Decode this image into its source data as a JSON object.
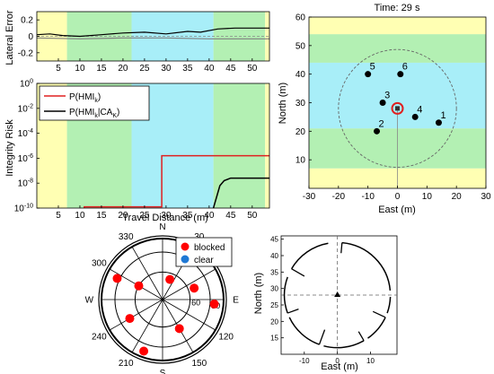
{
  "panels": {
    "lateral_error": {
      "ylabel": "Lateral Error"
    },
    "integrity_risk": {
      "ylabel": "Integrity Risk",
      "xlabel": "Travel Distance (m)"
    },
    "map": {
      "title": "Time: 29 s",
      "xlabel": "East (m)",
      "ylabel": "North (m)"
    },
    "polar": {
      "legend": [
        "blocked",
        "clear"
      ]
    },
    "scan": {
      "xlabel": "East (m)",
      "ylabel": "North (m)"
    }
  },
  "chart_data": [
    {
      "id": "lateral_error",
      "type": "line",
      "ylabel": "Lateral Error",
      "xlim": [
        0,
        54
      ],
      "ylim": [
        -0.3,
        0.3
      ],
      "yticks": [
        0.2,
        0,
        -0.2
      ],
      "xticks": [
        5,
        10,
        15,
        20,
        25,
        30,
        35,
        40,
        45,
        50
      ],
      "bands": [
        {
          "from": 0,
          "to": 7,
          "color": "#ffffb3"
        },
        {
          "from": 7,
          "to": 22,
          "color": "#b3f0b3"
        },
        {
          "from": 22,
          "to": 41,
          "color": "#a8eef8"
        },
        {
          "from": 41,
          "to": 53,
          "color": "#b3f0b3"
        },
        {
          "from": 53,
          "to": 54,
          "color": "#ffffb3"
        }
      ],
      "series": [
        {
          "values": [
            [
              0,
              0.02
            ],
            [
              3,
              0.03
            ],
            [
              6,
              0.01
            ],
            [
              10,
              0.0
            ],
            [
              15,
              0.02
            ],
            [
              20,
              0.04
            ],
            [
              25,
              0.05
            ],
            [
              30,
              0.03
            ],
            [
              35,
              0.06
            ],
            [
              38,
              0.05
            ],
            [
              42,
              0.09
            ],
            [
              46,
              0.1
            ],
            [
              50,
              0.1
            ],
            [
              54,
              0.1
            ]
          ],
          "color": "#000000"
        },
        {
          "values": [
            [
              0,
              -0.02
            ],
            [
              10,
              -0.03
            ],
            [
              20,
              -0.02
            ],
            [
              30,
              -0.02
            ],
            [
              40,
              -0.03
            ],
            [
              54,
              -0.03
            ]
          ],
          "color": "#808080"
        }
      ]
    },
    {
      "id": "integrity_risk",
      "type": "line",
      "ylabel": "Integrity Risk",
      "xlabel": "Travel Distance (m)",
      "scale": "log",
      "xlim": [
        0,
        54
      ],
      "ylim_exp": [
        -10,
        0
      ],
      "yticks": [
        "10^0",
        "10^-2",
        "10^-4",
        "10^-6",
        "10^-8",
        "10^-10"
      ],
      "xticks": [
        5,
        10,
        15,
        20,
        25,
        30,
        35,
        40,
        45,
        50
      ],
      "legend": [
        "P(HMI_k)",
        "P(HMI_k|CA_K)"
      ],
      "bands": [
        {
          "from": 0,
          "to": 7,
          "color": "#ffffb3"
        },
        {
          "from": 7,
          "to": 22,
          "color": "#b3f0b3"
        },
        {
          "from": 22,
          "to": 41,
          "color": "#a8eef8"
        },
        {
          "from": 41,
          "to": 53,
          "color": "#b3f0b3"
        },
        {
          "from": 53,
          "to": 54,
          "color": "#ffffb3"
        }
      ],
      "series": [
        {
          "name": "P(HMI_k)",
          "color": "#e02020",
          "values": [
            [
              11,
              -10
            ],
            [
              11,
              -9.9
            ],
            [
              29,
              -9.9
            ],
            [
              29,
              -5.8
            ],
            [
              54,
              -5.8
            ]
          ]
        },
        {
          "name": "P(HMI_k|CA_K)",
          "color": "#000000",
          "values": [
            [
              41,
              -10
            ],
            [
              42.5,
              -8.2
            ],
            [
              43.5,
              -7.8
            ],
            [
              45,
              -7.6
            ],
            [
              48,
              -7.6
            ],
            [
              54,
              -7.6
            ]
          ]
        }
      ]
    },
    {
      "id": "map",
      "type": "scatter",
      "title": "Time: 29 s",
      "xlabel": "East (m)",
      "ylabel": "North (m)",
      "xlim": [
        -30,
        30
      ],
      "ylim": [
        0,
        60
      ],
      "xticks": [
        -30,
        -20,
        -10,
        0,
        10,
        20,
        30
      ],
      "yticks": [
        10,
        20,
        30,
        40,
        50,
        60
      ],
      "bands": [
        {
          "from": 0,
          "to": 7,
          "color": "#ffffb3"
        },
        {
          "from": 7,
          "to": 21,
          "color": "#b3f0b3"
        },
        {
          "from": 21,
          "to": 44,
          "color": "#a8eef8"
        },
        {
          "from": 44,
          "to": 54,
          "color": "#b3f0b3"
        },
        {
          "from": 54,
          "to": 60,
          "color": "#ffffb3"
        }
      ],
      "vehicle": {
        "x": 0,
        "y": 28
      },
      "range_circle_radius": 20,
      "points": [
        {
          "label": "1",
          "x": 14,
          "y": 23
        },
        {
          "label": "2",
          "x": -7,
          "y": 20
        },
        {
          "label": "3",
          "x": -5,
          "y": 30
        },
        {
          "label": "4",
          "x": 6,
          "y": 25
        },
        {
          "label": "5",
          "x": -10,
          "y": 40
        },
        {
          "label": "6",
          "x": 1,
          "y": 40
        }
      ]
    },
    {
      "id": "polar",
      "type": "scatter",
      "angle_labels": [
        {
          "deg": 0,
          "text": "N"
        },
        {
          "deg": 30,
          "text": "30"
        },
        {
          "deg": 60,
          "text": "60"
        },
        {
          "deg": 90,
          "text": "E"
        },
        {
          "deg": 120,
          "text": "120"
        },
        {
          "deg": 150,
          "text": "150"
        },
        {
          "deg": 180,
          "text": "S"
        },
        {
          "deg": 210,
          "text": "210"
        },
        {
          "deg": 240,
          "text": "240"
        },
        {
          "deg": 270,
          "text": "W"
        },
        {
          "deg": 300,
          "text": "300"
        },
        {
          "deg": 330,
          "text": "330"
        }
      ],
      "radial_labels": [
        {
          "r": 0.45,
          "text": "60"
        },
        {
          "r": 0.78,
          "text": "30"
        }
      ],
      "legend": [
        {
          "name": "blocked",
          "color": "#ff0000"
        },
        {
          "name": "clear",
          "color": "#1f78d4"
        }
      ],
      "points": [
        {
          "az": 295,
          "r": 0.82,
          "status": "blocked"
        },
        {
          "az": 300,
          "r": 0.45,
          "status": "blocked"
        },
        {
          "az": 20,
          "r": 0.35,
          "status": "blocked"
        },
        {
          "az": 70,
          "r": 0.55,
          "status": "blocked"
        },
        {
          "az": 95,
          "r": 0.85,
          "status": "blocked"
        },
        {
          "az": 240,
          "r": 0.62,
          "status": "blocked"
        },
        {
          "az": 200,
          "r": 0.9,
          "status": "blocked"
        },
        {
          "az": 150,
          "r": 0.55,
          "status": "blocked"
        }
      ]
    },
    {
      "id": "scan",
      "type": "line",
      "xlabel": "East (m)",
      "ylabel": "North (m)",
      "xlim": [
        -17,
        18
      ],
      "ylim": [
        10,
        46
      ],
      "xticks": [
        -10,
        0,
        10
      ],
      "yticks": [
        15,
        20,
        25,
        30,
        35,
        40,
        45
      ],
      "center": {
        "x": 0,
        "y": 28
      },
      "radius": 16
    }
  ]
}
